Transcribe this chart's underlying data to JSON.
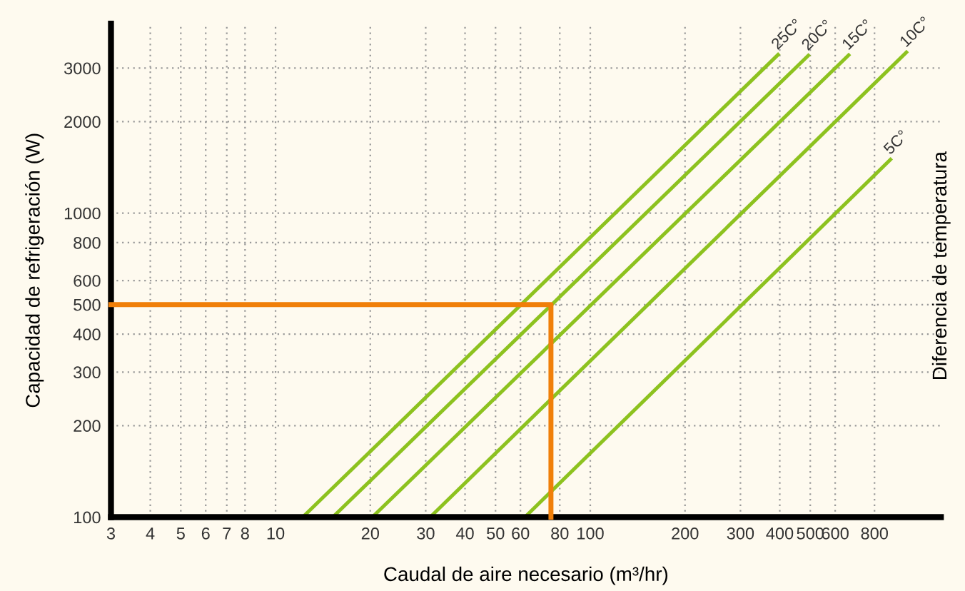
{
  "chart_data": {
    "type": "line",
    "log": "xy",
    "xlabel": "Caudal de aire necesario (m³/hr)",
    "ylabel": "Capacidad de refrigeración (W)",
    "annotations": [
      "Diferencia de temperatura"
    ],
    "series": [
      {
        "name": "25C°",
        "color": "#8dc21f",
        "x": [
          12.2,
          395
        ],
        "values": [
          100,
          3320
        ]
      },
      {
        "name": "20C°",
        "color": "#8dc21f",
        "x": [
          15.2,
          493
        ],
        "values": [
          100,
          3300
        ]
      },
      {
        "name": "15C°",
        "color": "#8dc21f",
        "x": [
          20.3,
          662
        ],
        "values": [
          100,
          3310
        ]
      },
      {
        "name": "10C°",
        "color": "#8dc21f",
        "x": [
          31,
          1010
        ],
        "values": [
          100,
          3380
        ]
      },
      {
        "name": "5C°",
        "color": "#8dc21f",
        "x": [
          62,
          899
        ],
        "values": [
          100,
          1500
        ]
      },
      {
        "color": "#f07f09",
        "x": [
          3,
          75,
          75
        ],
        "values": [
          500,
          500,
          100
        ]
      }
    ],
    "xlim": [
      3,
      1300
    ],
    "ylim": [
      100,
      4200
    ],
    "xticks": [
      3,
      4,
      5,
      6,
      7,
      8,
      10,
      20,
      30,
      40,
      50,
      60,
      80,
      100,
      200,
      300,
      400,
      500,
      600,
      800
    ],
    "yticks": [
      100,
      200,
      300,
      400,
      500,
      600,
      800,
      1000,
      2000,
      3000
    ],
    "grid": true,
    "line_style": "solid",
    "marker": "none",
    "legend": false
  }
}
